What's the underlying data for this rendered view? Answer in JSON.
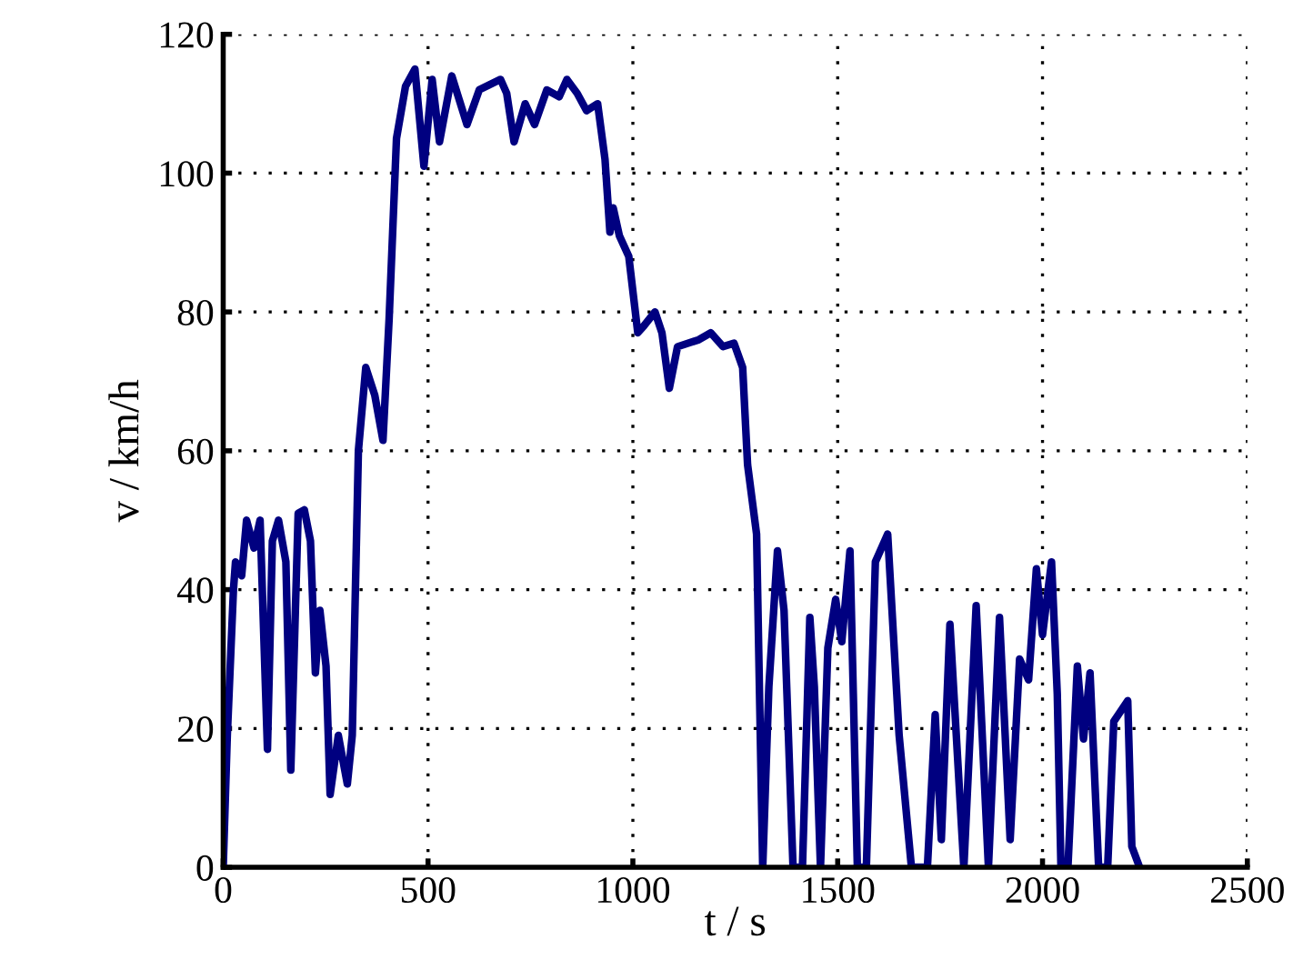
{
  "chart_data": {
    "type": "line",
    "xlabel": "t / s",
    "ylabel": "v / km/h",
    "xlim": [
      0,
      2500
    ],
    "ylim": [
      0,
      120
    ],
    "xticks": [
      0,
      500,
      1000,
      1500,
      2000,
      2500
    ],
    "yticks": [
      0,
      20,
      40,
      60,
      80,
      100,
      120
    ],
    "grid": true,
    "line_style": "solid",
    "marker": "none",
    "series": [
      {
        "color": "#000080",
        "x": [
          0,
          10,
          25,
          30,
          45,
          57,
          75,
          90,
          108,
          120,
          135,
          153,
          165,
          183,
          198,
          213,
          225,
          236,
          251,
          261,
          281,
          303,
          315,
          330,
          348,
          370,
          390,
          405,
          423,
          445,
          468,
          490,
          510,
          528,
          558,
          595,
          625,
          677,
          692,
          710,
          737,
          760,
          790,
          820,
          839,
          864,
          887,
          914,
          932,
          944,
          952,
          967,
          990,
          1012,
          1027,
          1054,
          1071,
          1089,
          1109,
          1161,
          1190,
          1220,
          1247,
          1268,
          1280,
          1302,
          1317,
          1332,
          1353,
          1369,
          1391,
          1414,
          1432,
          1443,
          1458,
          1476,
          1495,
          1510,
          1530,
          1548,
          1570,
          1592,
          1622,
          1650,
          1680,
          1719,
          1738,
          1753,
          1774,
          1808,
          1838,
          1868,
          1895,
          1921,
          1944,
          1966,
          1985,
          2000,
          2022,
          2036,
          2045,
          2062,
          2085,
          2100,
          2116,
          2137,
          2159,
          2174,
          2208,
          2218,
          2237
        ],
        "values": [
          0,
          19,
          40,
          44,
          42,
          50,
          46,
          50,
          17,
          47,
          50,
          44,
          14,
          51,
          51.5,
          47,
          28,
          37,
          29,
          10.5,
          19,
          12,
          19,
          60,
          72,
          68,
          61.5,
          79,
          105,
          112.5,
          115,
          101,
          113.5,
          104.5,
          114,
          107,
          112,
          113.5,
          111.5,
          104.5,
          110,
          107,
          112,
          111,
          113.5,
          111.5,
          109,
          110,
          102,
          91.5,
          95,
          91,
          88,
          77,
          78,
          80,
          77,
          69,
          75,
          76,
          77,
          75,
          75.5,
          72,
          58,
          48,
          0,
          26,
          45.6,
          37,
          0,
          0,
          36,
          26,
          0,
          31.6,
          38.6,
          32.5,
          45.6,
          0,
          0,
          44,
          48,
          19,
          0,
          0,
          22,
          4,
          35,
          0,
          37.7,
          0,
          36,
          4,
          30,
          27,
          43,
          33.5,
          44,
          25,
          0,
          0,
          29,
          18.5,
          28,
          0,
          0,
          21,
          24,
          3,
          0
        ]
      }
    ]
  }
}
